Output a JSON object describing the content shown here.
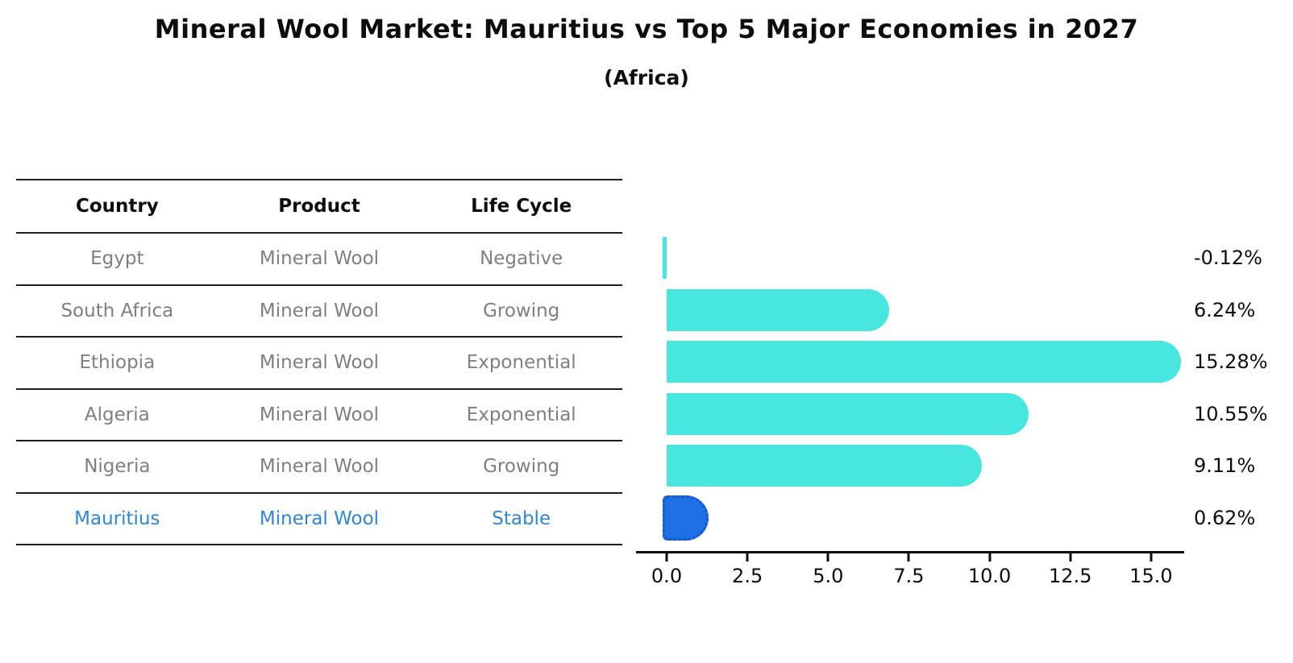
{
  "title": "Mineral Wool Market: Mauritius vs Top 5 Major Economies in 2027",
  "subtitle": "(Africa)",
  "colors": {
    "bar": "#47e7e0",
    "highlight_bar": "#1d6fe3",
    "highlight_bar_border": "#1256cc",
    "highlight_text": "#2e86d6",
    "row_text": "#7f7f7f",
    "header_text": "#0d0d0d",
    "axis": "#0d0d0d"
  },
  "table": {
    "headers": [
      "Country",
      "Product",
      "Life Cycle"
    ],
    "rows": [
      [
        "Egypt",
        "Mineral Wool",
        "Negative"
      ],
      [
        "South Africa",
        "Mineral Wool",
        "Growing"
      ],
      [
        "Ethiopia",
        "Mineral Wool",
        "Exponential"
      ],
      [
        "Algeria",
        "Mineral Wool",
        "Exponential"
      ],
      [
        "Nigeria",
        "Mineral Wool",
        "Growing"
      ],
      [
        "Mauritius",
        "Mineral Wool",
        "Stable"
      ]
    ]
  },
  "chart_data": {
    "type": "bar",
    "orientation": "horizontal",
    "title": "Mineral Wool Market: Mauritius vs Top 5 Major Economies in 2027 (Africa)",
    "xlabel": "",
    "ylabel": "",
    "categories": [
      "Egypt",
      "South Africa",
      "Ethiopia",
      "Algeria",
      "Nigeria",
      "Mauritius"
    ],
    "values": [
      -0.12,
      6.24,
      15.28,
      10.55,
      9.11,
      0.62
    ],
    "value_labels": [
      "-0.12%",
      "6.24%",
      "15.28%",
      "10.55%",
      "9.11%",
      "0.62%"
    ],
    "life_cycles": [
      "Negative",
      "Growing",
      "Exponential",
      "Exponential",
      "Growing",
      "Stable"
    ],
    "product": "Mineral Wool",
    "highlight_index": 5,
    "highlight_category": "Mauritius",
    "xticks": [
      "0.0",
      "2.5",
      "5.0",
      "7.5",
      "10.0",
      "12.5",
      "15.0"
    ],
    "xtick_values": [
      0,
      2.5,
      5,
      7.5,
      10,
      12.5,
      15
    ],
    "xlim": [
      -0.95,
      16.0
    ],
    "grid": false,
    "legend": "none"
  }
}
